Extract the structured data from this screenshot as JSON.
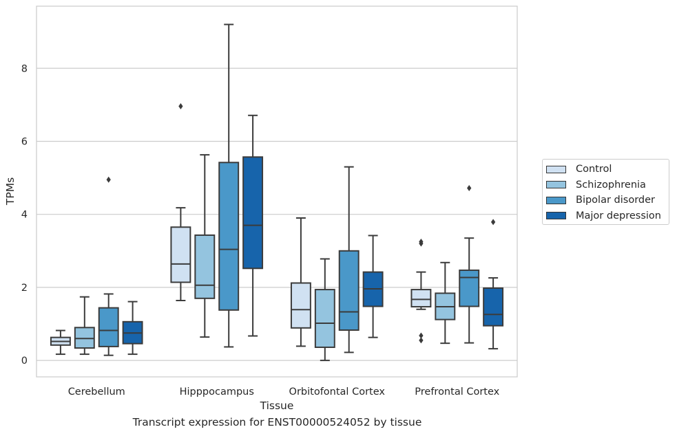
{
  "caption": "Transcript expression for ENST00000524052 by tissue",
  "legend": {
    "items": [
      {
        "label": "Control",
        "color": "#d0e1f2"
      },
      {
        "label": "Schizophrenia",
        "color": "#94c4df"
      },
      {
        "label": "Bipolar disorder",
        "color": "#4a98c9"
      },
      {
        "label": "Major depression",
        "color": "#1764ab"
      }
    ]
  },
  "chart_data": {
    "type": "box",
    "xlabel": "Tissue",
    "ylabel": "TPMs",
    "ylim": [
      -0.45,
      9.7
    ],
    "yticks": [
      0,
      2,
      4,
      6,
      8
    ],
    "grid": "horizontal",
    "legend_position": "right",
    "categories": [
      "Cerebellum",
      "Hipppocampus",
      "Orbitofontal Cortex",
      "Prefrontal Cortex"
    ],
    "series": [
      {
        "name": "Control",
        "color": "#d0e1f2",
        "boxes": [
          {
            "whislo": 0.17,
            "q1": 0.42,
            "med": 0.52,
            "q3": 0.63,
            "whishi": 0.82,
            "fliers": []
          },
          {
            "whislo": 1.64,
            "q1": 2.14,
            "med": 2.64,
            "q3": 3.65,
            "whishi": 4.18,
            "fliers": [
              6.96
            ]
          },
          {
            "whislo": 0.39,
            "q1": 0.89,
            "med": 1.39,
            "q3": 2.12,
            "whishi": 3.9,
            "fliers": []
          },
          {
            "whislo": 1.4,
            "q1": 1.47,
            "med": 1.67,
            "q3": 1.94,
            "whishi": 2.42,
            "fliers": [
              3.25,
              3.2,
              0.68,
              0.55
            ]
          }
        ]
      },
      {
        "name": "Schizophrenia",
        "color": "#94c4df",
        "boxes": [
          {
            "whislo": 0.17,
            "q1": 0.34,
            "med": 0.6,
            "q3": 0.9,
            "whishi": 1.74,
            "fliers": []
          },
          {
            "whislo": 0.64,
            "q1": 1.7,
            "med": 2.06,
            "q3": 3.43,
            "whishi": 5.63,
            "fliers": []
          },
          {
            "whislo": 0.0,
            "q1": 0.36,
            "med": 1.02,
            "q3": 1.94,
            "whishi": 2.78,
            "fliers": []
          },
          {
            "whislo": 0.47,
            "q1": 1.12,
            "med": 1.47,
            "q3": 1.84,
            "whishi": 2.68,
            "fliers": []
          }
        ]
      },
      {
        "name": "Bipolar disorder",
        "color": "#4a98c9",
        "boxes": [
          {
            "whislo": 0.14,
            "q1": 0.38,
            "med": 0.82,
            "q3": 1.44,
            "whishi": 1.82,
            "fliers": [
              4.95
            ]
          },
          {
            "whislo": 0.37,
            "q1": 1.38,
            "med": 3.04,
            "q3": 5.42,
            "whishi": 9.2,
            "fliers": []
          },
          {
            "whislo": 0.22,
            "q1": 0.83,
            "med": 1.33,
            "q3": 3.0,
            "whishi": 5.3,
            "fliers": []
          },
          {
            "whislo": 0.48,
            "q1": 1.48,
            "med": 2.27,
            "q3": 2.47,
            "whishi": 3.35,
            "fliers": [
              4.72
            ]
          }
        ]
      },
      {
        "name": "Major depression",
        "color": "#1764ab",
        "boxes": [
          {
            "whislo": 0.17,
            "q1": 0.46,
            "med": 0.75,
            "q3": 1.06,
            "whishi": 1.61,
            "fliers": []
          },
          {
            "whislo": 0.67,
            "q1": 2.52,
            "med": 3.7,
            "q3": 5.57,
            "whishi": 6.71,
            "fliers": []
          },
          {
            "whislo": 0.63,
            "q1": 1.48,
            "med": 1.96,
            "q3": 2.42,
            "whishi": 3.42,
            "fliers": []
          },
          {
            "whislo": 0.32,
            "q1": 0.95,
            "med": 1.26,
            "q3": 1.98,
            "whishi": 2.26,
            "fliers": [
              3.79
            ]
          }
        ]
      }
    ]
  }
}
